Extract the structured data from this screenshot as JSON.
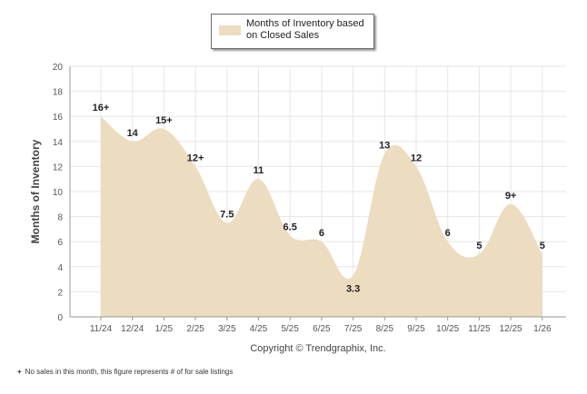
{
  "chart_data": {
    "type": "area",
    "title": "",
    "legend": {
      "label": "Months of Inventory based on Closed Sales",
      "position": "top-center"
    },
    "series": [
      {
        "name": "Months of Inventory based on Closed Sales",
        "color": "#ecdcc0",
        "values": [
          16,
          14,
          15,
          12,
          7.5,
          11,
          6.5,
          6,
          3.3,
          13,
          12,
          6,
          5,
          9,
          5
        ]
      }
    ],
    "categories": [
      "11/24",
      "12/24",
      "1/25",
      "2/25",
      "3/25",
      "4/25",
      "5/25",
      "6/25",
      "7/25",
      "8/25",
      "9/25",
      "10/25",
      "11/25",
      "12/25",
      "1/26"
    ],
    "data_labels": [
      "16+",
      "14",
      "15+",
      "12+",
      "7.5",
      "11",
      "6.5",
      "6",
      "3.3",
      "13",
      "12",
      "6",
      "5",
      "9+",
      "5"
    ],
    "xlabel": "Copyright © Trendgraphix, Inc.",
    "ylabel": "Months of Inventory",
    "ylim": [
      0,
      20
    ],
    "yticks": [
      0,
      2,
      4,
      6,
      8,
      10,
      12,
      14,
      16,
      18,
      20
    ],
    "grid": true
  },
  "footnote": {
    "mark": "+",
    "text": "No sales in this month, this figure represents # of for sale listings"
  },
  "colors": {
    "fill": "#ecdcc0",
    "grid": "#e6e6e6",
    "axis": "#9a9a9a",
    "text": "#222222"
  }
}
